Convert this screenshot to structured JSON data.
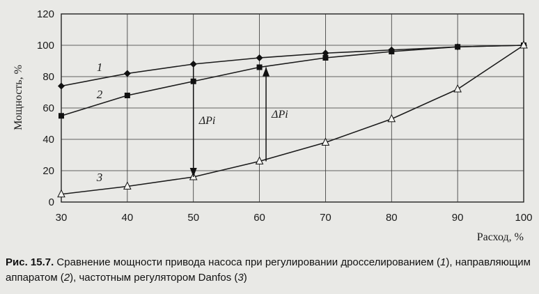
{
  "chart_data": {
    "type": "line",
    "title": "",
    "xlabel": "Расход, %",
    "ylabel": "Мощность, %",
    "xlim": [
      30,
      100
    ],
    "ylim": [
      0,
      120
    ],
    "x_ticks": [
      "30",
      "40",
      "50",
      "60",
      "70",
      "80",
      "90",
      "100"
    ],
    "y_ticks": [
      "0",
      "20",
      "40",
      "60",
      "80",
      "100",
      "120"
    ],
    "series": [
      {
        "name": "1",
        "marker": "diamond",
        "x": [
          30,
          40,
          50,
          60,
          70,
          80,
          90,
          100
        ],
        "y": [
          74,
          82,
          88,
          92,
          95,
          97,
          99,
          100
        ]
      },
      {
        "name": "2",
        "marker": "square",
        "x": [
          30,
          40,
          50,
          60,
          70,
          80,
          90,
          100
        ],
        "y": [
          55,
          68,
          77,
          86,
          92,
          96,
          99,
          100
        ]
      },
      {
        "name": "3",
        "marker": "triangle",
        "x": [
          30,
          40,
          50,
          60,
          70,
          80,
          90,
          100
        ],
        "y": [
          5,
          10,
          16,
          26,
          38,
          53,
          72,
          100
        ]
      }
    ],
    "annotations": [
      {
        "text": "ΔPi",
        "x": 50,
        "y_from": 88,
        "y_to": 16
      },
      {
        "text": "ΔPi",
        "x": 61,
        "y_from": 26,
        "y_to": 86
      }
    ]
  },
  "caption": {
    "label": "Рис. 15.7.",
    "text_1": " Сравнение мощности привода насоса при регулировании дросселированием (",
    "n1": "1",
    "text_2": "), направляющим аппаратом (",
    "n2": "2",
    "text_3": "), частотным регулятором Danfos (",
    "n3": "3",
    "text_4": ")"
  }
}
